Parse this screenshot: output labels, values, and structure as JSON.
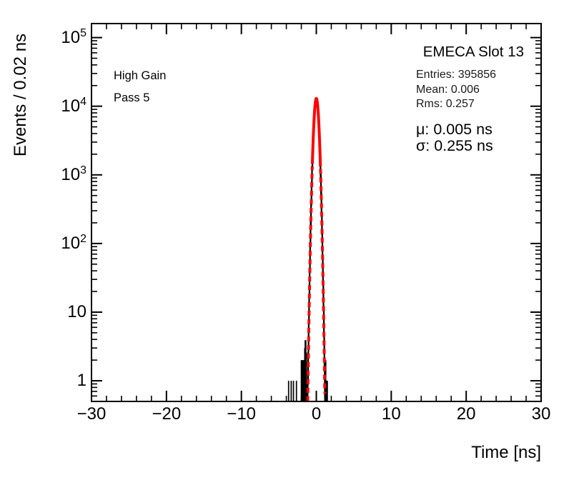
{
  "chart_data": {
    "type": "histogram",
    "y_scale": "log",
    "title": "EMECA Slot 13",
    "xlabel": "Time [ns]",
    "ylabel": "Events / 0.02 ns",
    "xlim": [
      -30,
      30
    ],
    "ylim": [
      0.5,
      160000
    ],
    "x_major_ticks": [
      -30,
      -20,
      -10,
      0,
      10,
      20,
      30
    ],
    "x_tick_labels": [
      "−30",
      "−20",
      "−10",
      "0",
      "10",
      "20",
      "30"
    ],
    "x_minor_step": 2,
    "y_major_ticks": [
      1,
      10,
      100,
      1000,
      10000,
      100000
    ],
    "y_tick_labels": [
      {
        "base": "1",
        "sup": "",
        "value": 1
      },
      {
        "base": "10",
        "sup": "",
        "value": 10
      },
      {
        "base": "10",
        "sup": "2",
        "value": 100
      },
      {
        "base": "10",
        "sup": "3",
        "value": 1000
      },
      {
        "base": "10",
        "sup": "4",
        "value": 10000
      },
      {
        "base": "10",
        "sup": "5",
        "value": 100000
      }
    ],
    "frame_color": "#000000",
    "histogram": {
      "color": "#000000",
      "bin_width_ns": 0.02,
      "peak": {
        "amplitude": 12200,
        "mean": 0.005,
        "sigma": 0.26
      },
      "noise_singles": [
        {
          "t": -3.7,
          "count": 1
        },
        {
          "t": -3.35,
          "count": 1
        },
        {
          "t": -3.05,
          "count": 1
        },
        {
          "t": -2.65,
          "count": 1
        },
        {
          "t": 1.38,
          "count": 1
        },
        {
          "t": 1.47,
          "count": 1
        }
      ],
      "noise_blocks": [
        {
          "t0": -2.08,
          "t1": -1.5,
          "count": 2
        },
        {
          "t0": 1.15,
          "t1": 1.3,
          "count": 2
        }
      ],
      "noise_spikes": [
        {
          "t": -1.5,
          "count": 3
        },
        {
          "t": -1.44,
          "count": 3.9
        },
        {
          "t": -1.37,
          "count": 2.6
        }
      ]
    },
    "fit": {
      "color": "#ff0000",
      "amplitude": 13000,
      "mu": 0.005,
      "sigma": 0.255,
      "solid_range": [
        -0.53,
        0.56
      ],
      "dash_range": [
        -1.16,
        1.15
      ]
    },
    "annotations": {
      "corner_line1": "High Gain",
      "corner_line2": "Pass 5",
      "stats_entries": "Entries: 395856",
      "stats_mean": "Mean: 0.006",
      "stats_rms": "Rms: 0.257",
      "fit_mu": "μ: 0.005 ns",
      "fit_sigma": "σ: 0.255 ns"
    }
  }
}
